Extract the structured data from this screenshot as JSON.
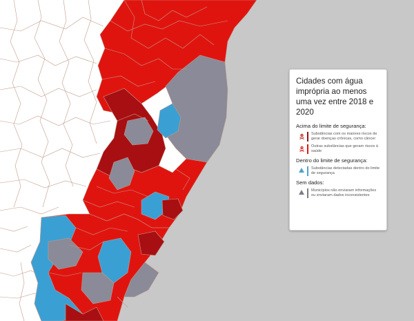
{
  "colors": {
    "ocean": "#c8c8c8",
    "land_background": "#ffffff",
    "border_lines": "#c29b8c",
    "severe_red": "#e0140f",
    "dark_red": "#a80f12",
    "safe_blue": "#3aa0d4",
    "no_data_gray": "#8a8a98",
    "legend_bar_red": "#9b1111",
    "legend_bar_blue": "#4fa3c9",
    "legend_bar_gray": "#7c7c86"
  },
  "legend": {
    "title": "Cidades com água imprópria ao menos uma vez entre 2018 e 2020",
    "sections": [
      {
        "heading": "Acima do limite de segurança:",
        "items": [
          {
            "icon": "skull-crossbones-icon",
            "text": "Substâncias com os maiores riscos de gerar doenças crônicas, como câncer"
          },
          {
            "icon": "skull-crossbones-icon",
            "text": "Outras substâncias que geram riscos à saúde"
          }
        ]
      },
      {
        "heading": "Dentro do limite de segurança:",
        "items": [
          {
            "icon": "warning-triangle-blue-icon",
            "text": "Substâncias detectadas dentro do limite de segurança"
          }
        ]
      },
      {
        "heading": "Sem dados:",
        "items": [
          {
            "icon": "warning-triangle-gray-icon",
            "text": "Municípios não enviaram informações ou enviaram dados inconsistentes"
          }
        ]
      }
    ]
  }
}
